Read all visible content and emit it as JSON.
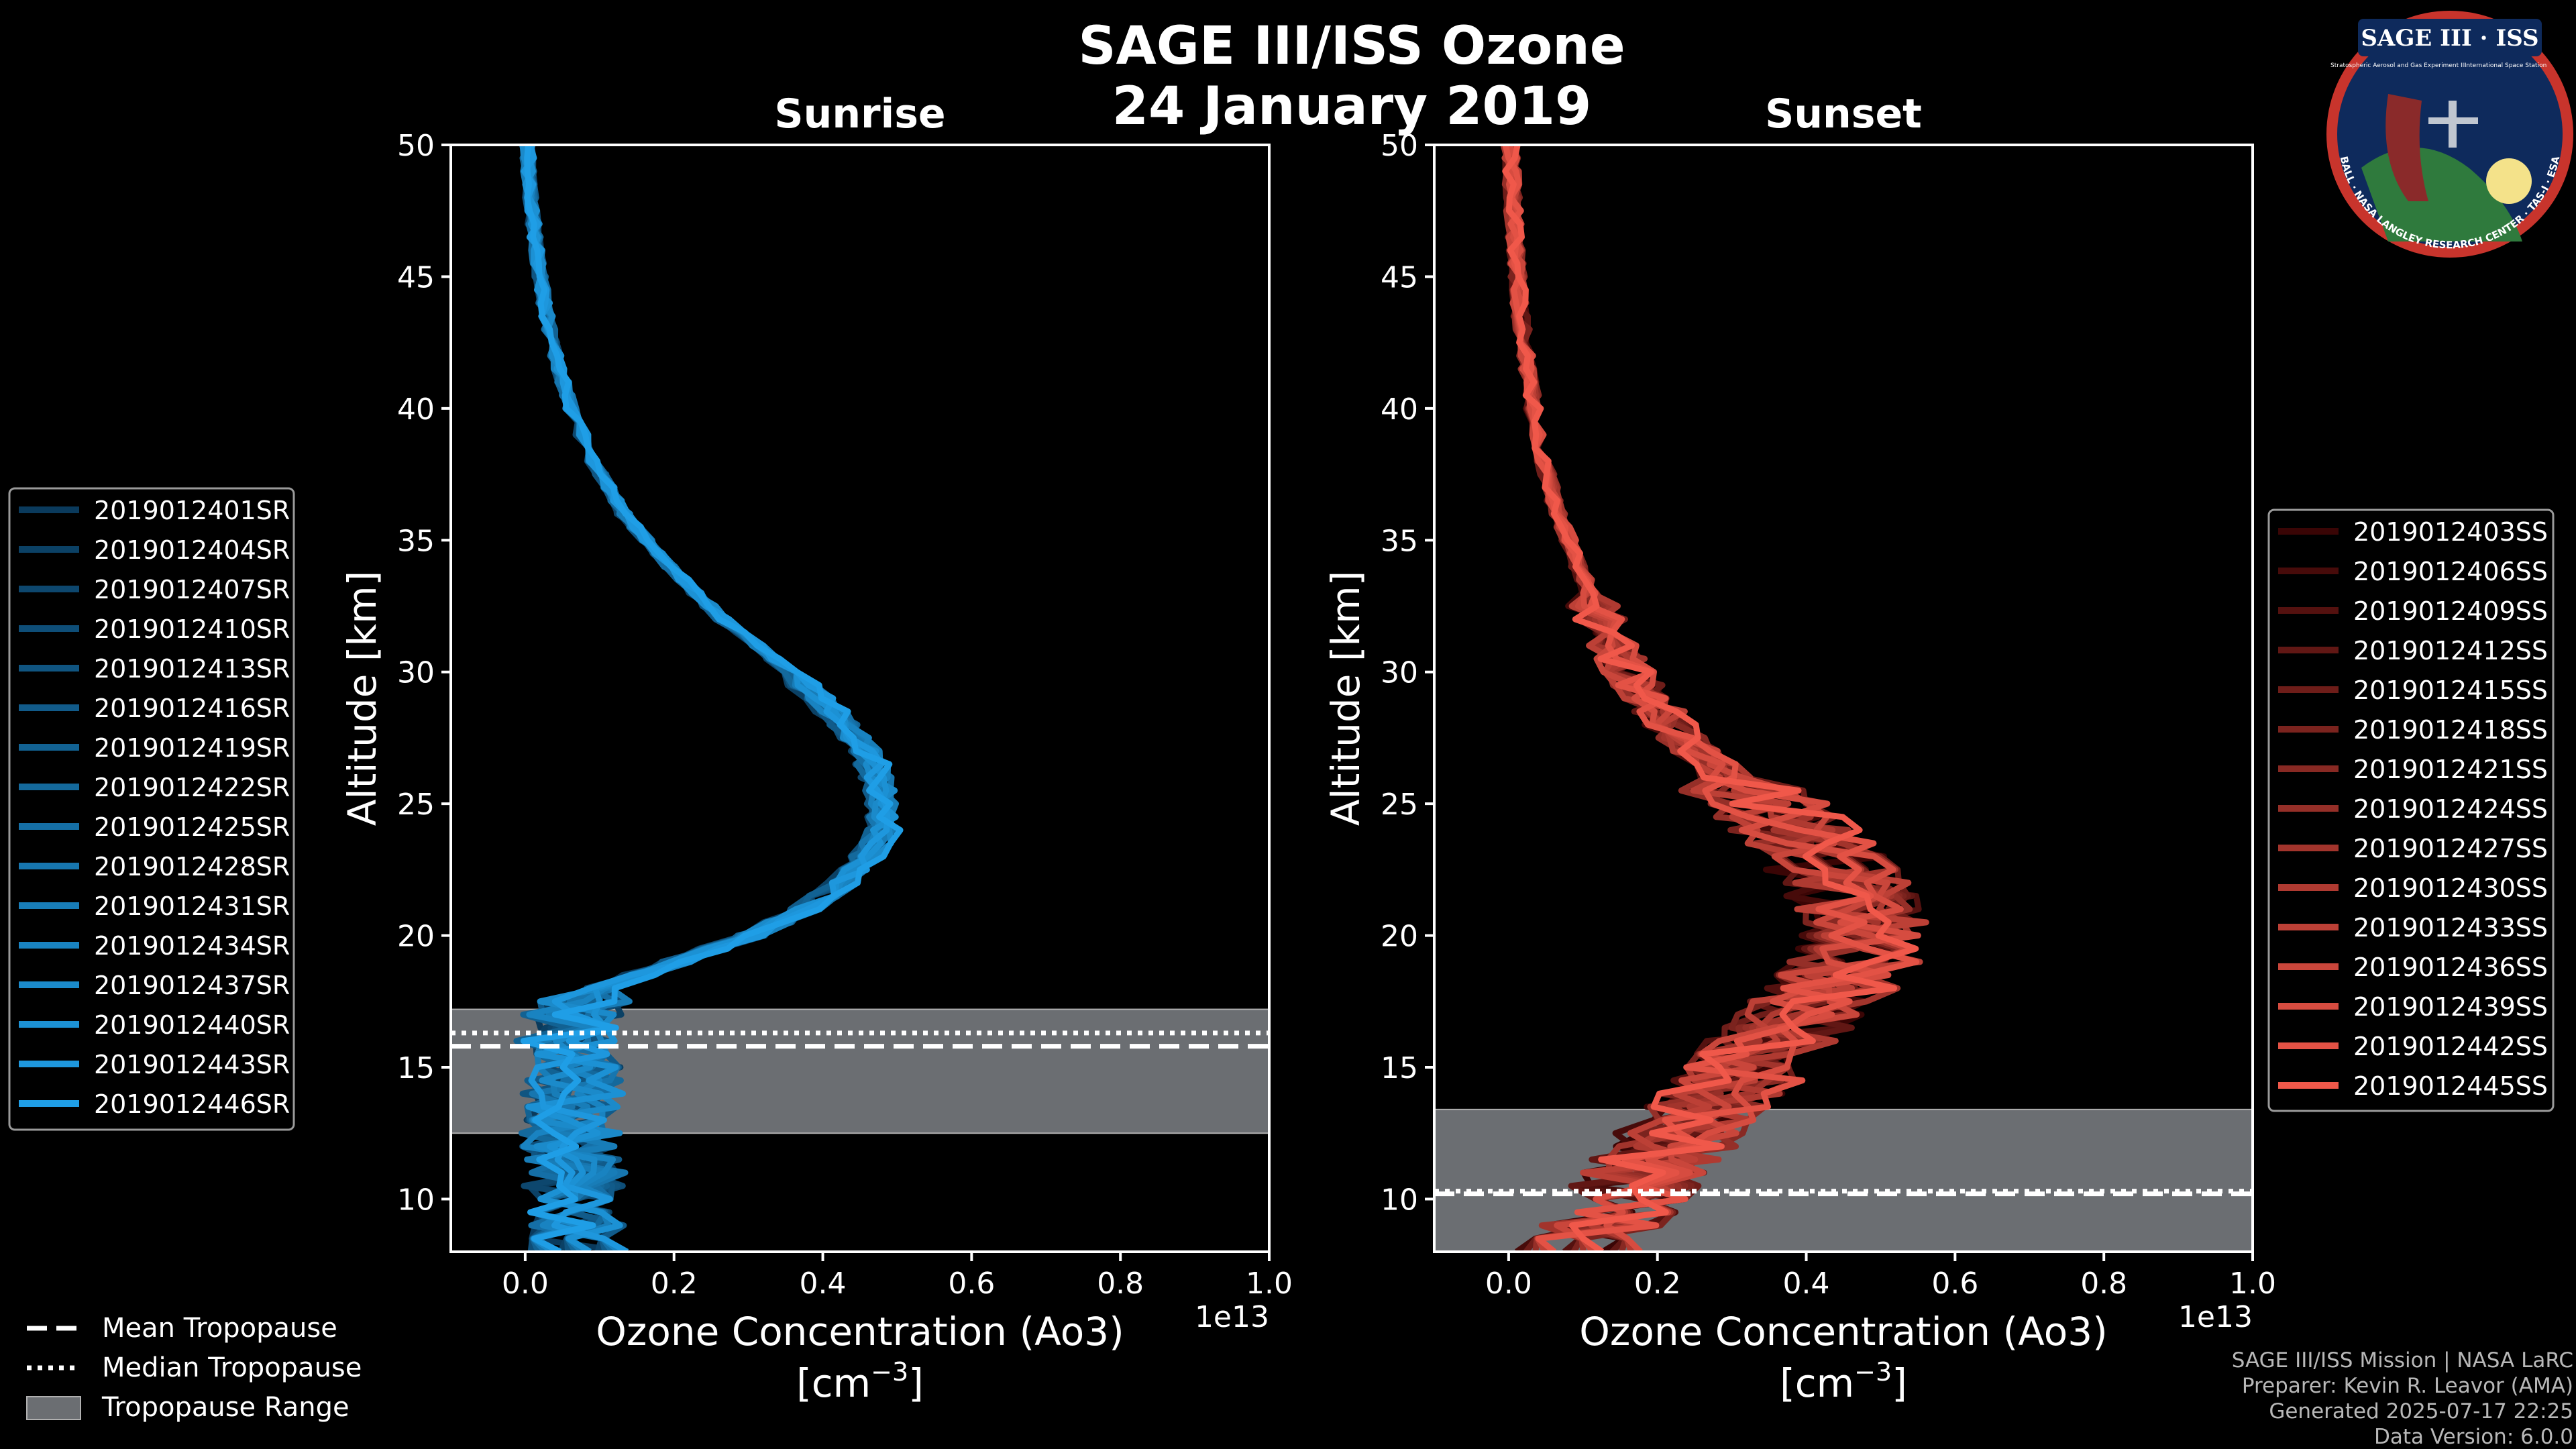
{
  "figure": {
    "title_line1": "SAGE III/ISS Ozone",
    "title_line2": "24 January 2019",
    "credits": [
      "SAGE III/ISS Mission | NASA LaRC",
      "Preparer: Kevin R. Leavor (AMA)",
      "Generated 2025-07-17 22:25",
      "Data Version: 6.0.0"
    ],
    "logo": {
      "title": "SAGE III · ISS",
      "ring_text": "BALL · NASA LANGLEY RESEARCH CENTER · TAS-I · ESA",
      "sub_left": "Stratospheric Aerosol and Gas Experiment III",
      "sub_right": "International Space Station"
    }
  },
  "legend_tropopause": {
    "mean": "Mean Tropopause",
    "median": "Median Tropopause",
    "range": "Tropopause Range"
  },
  "chart_data": [
    {
      "type": "line",
      "title": "Sunrise",
      "xlabel_line1": "Ozone Concentration (Ao3)",
      "xlabel_unit": "[cm",
      "xlabel_exp": "−3",
      "xlabel_close": "]",
      "x_multiplier": "1e13",
      "ylabel": "Altitude [km]",
      "xlim": [
        -0.1,
        1.0
      ],
      "ylim": [
        8,
        50
      ],
      "xticks": [
        0.0,
        0.2,
        0.4,
        0.6,
        0.8,
        1.0
      ],
      "xtick_labels": [
        "0.0",
        "0.2",
        "0.4",
        "0.6",
        "0.8",
        "1.0"
      ],
      "yticks": [
        10,
        15,
        20,
        25,
        30,
        35,
        40,
        45,
        50
      ],
      "ytick_labels": [
        "10",
        "15",
        "20",
        "25",
        "30",
        "35",
        "40",
        "45",
        "50"
      ],
      "tropopause": {
        "mean": 15.8,
        "median": 16.3,
        "range": [
          12.5,
          17.2
        ]
      },
      "color_dark": "#0a3a5c",
      "color_light": "#1f9ee6",
      "profile": {
        "altitudes": [
          8,
          9,
          10,
          11,
          12,
          13,
          14,
          15,
          16,
          17,
          18,
          19,
          20,
          21,
          22,
          23,
          24,
          25,
          26,
          27,
          28,
          29,
          30,
          32,
          34,
          36,
          38,
          40,
          42,
          44,
          46,
          48,
          50
        ],
        "values": [
          0.07,
          0.07,
          0.06,
          0.07,
          0.06,
          0.06,
          0.06,
          0.06,
          0.05,
          0.06,
          0.1,
          0.2,
          0.3,
          0.37,
          0.42,
          0.45,
          0.47,
          0.47,
          0.465,
          0.45,
          0.42,
          0.39,
          0.35,
          0.26,
          0.19,
          0.13,
          0.09,
          0.06,
          0.04,
          0.025,
          0.015,
          0.007,
          0.003
        ]
      },
      "series_names": [
        "2019012401SR",
        "2019012404SR",
        "2019012407SR",
        "2019012410SR",
        "2019012413SR",
        "2019012416SR",
        "2019012419SR",
        "2019012422SR",
        "2019012425SR",
        "2019012428SR",
        "2019012431SR",
        "2019012434SR",
        "2019012437SR",
        "2019012440SR",
        "2019012443SR",
        "2019012446SR"
      ]
    },
    {
      "type": "line",
      "title": "Sunset",
      "xlabel_line1": "Ozone Concentration (Ao3)",
      "xlabel_unit": "[cm",
      "xlabel_exp": "−3",
      "xlabel_close": "]",
      "x_multiplier": "1e13",
      "ylabel": "Altitude [km]",
      "xlim": [
        -0.1,
        1.0
      ],
      "ylim": [
        8,
        50
      ],
      "xticks": [
        0.0,
        0.2,
        0.4,
        0.6,
        0.8,
        1.0
      ],
      "xtick_labels": [
        "0.0",
        "0.2",
        "0.4",
        "0.6",
        "0.8",
        "1.0"
      ],
      "yticks": [
        10,
        15,
        20,
        25,
        30,
        35,
        40,
        45,
        50
      ],
      "ytick_labels": [
        "10",
        "15",
        "20",
        "25",
        "30",
        "35",
        "40",
        "45",
        "50"
      ],
      "tropopause": {
        "mean": 10.2,
        "median": 10.3,
        "range": [
          8,
          13.4
        ]
      },
      "color_dark": "#3a0505",
      "color_light": "#f0584a",
      "profile": {
        "altitudes": [
          8,
          9,
          10,
          11,
          12,
          13,
          14,
          15,
          16,
          17,
          18,
          19,
          20,
          21,
          22,
          23,
          24,
          25,
          26,
          27,
          28,
          29,
          30,
          32,
          34,
          36,
          38,
          40,
          42,
          44,
          46,
          48,
          50
        ],
        "values": [
          0.1,
          0.13,
          0.17,
          0.2,
          0.23,
          0.26,
          0.3,
          0.34,
          0.38,
          0.42,
          0.46,
          0.49,
          0.5,
          0.5,
          0.48,
          0.45,
          0.41,
          0.36,
          0.31,
          0.27,
          0.23,
          0.2,
          0.17,
          0.13,
          0.1,
          0.07,
          0.05,
          0.035,
          0.025,
          0.015,
          0.01,
          0.006,
          0.003
        ]
      },
      "series_names": [
        "2019012403SS",
        "2019012406SS",
        "2019012409SS",
        "2019012412SS",
        "2019012415SS",
        "2019012418SS",
        "2019012421SS",
        "2019012424SS",
        "2019012427SS",
        "2019012430SS",
        "2019012433SS",
        "2019012436SS",
        "2019012439SS",
        "2019012442SS",
        "2019012445SS"
      ]
    }
  ]
}
